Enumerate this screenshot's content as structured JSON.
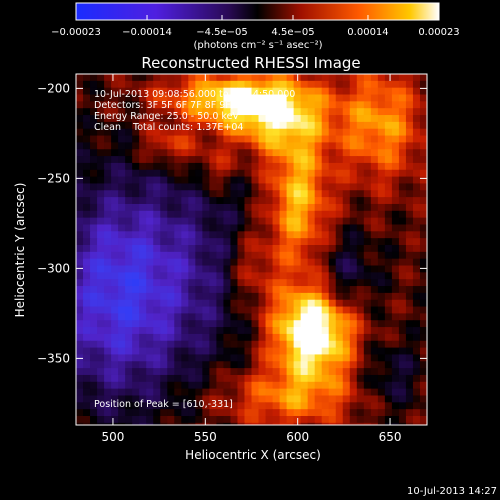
{
  "chart_data": {
    "type": "heatmap",
    "title": "Reconstructed RHESSI Image",
    "xlabel": "Heliocentric X (arcsec)",
    "ylabel": "Heliocentric Y (arcsec)",
    "xlim": [
      480,
      670
    ],
    "ylim": [
      -387,
      -192
    ],
    "xticks": [
      500,
      550,
      600,
      650
    ],
    "xtick_labels": [
      "500",
      "550",
      "600",
      "650"
    ],
    "yticks": [
      -200,
      -250,
      -300,
      -350
    ],
    "ytick_labels": [
      "−200",
      "−250",
      "−300",
      "−350"
    ],
    "colorbar": {
      "range": [
        -0.00023,
        0.00023
      ],
      "ticks": [
        -0.00023,
        -0.00014,
        -4.5e-05,
        4.5e-05,
        0.00014,
        0.00023
      ],
      "tick_labels": [
        "−0.00023",
        "−0.00014",
        "−4.5e−05",
        "4.5e−05",
        "0.00014",
        "0.00023"
      ],
      "unit_label": "(photons cm⁻² s⁻¹ asec⁻²)"
    },
    "annotations": [
      "10-Jul-2013 09:08:56.000 to 09:14:50.000",
      "Detectors: 3F 5F 6F 7F 8F 9F, Att 0",
      "Energy Range: 25.0 - 50.0 keV",
      "Clean    Total counts: 1.37E+04"
    ],
    "peak_label": "Position of Peak = [610,-331]",
    "peak": [
      610,
      -331
    ],
    "grid": false,
    "sources": [
      {
        "x": 608,
        "y": -335,
        "amp": 0.00026,
        "sx": 16,
        "sy": 18
      },
      {
        "x": 585,
        "y": -215,
        "amp": 0.00017,
        "sx": 22,
        "sy": 14
      },
      {
        "x": 560,
        "y": -205,
        "amp": 0.00014,
        "sx": 26,
        "sy": 9
      },
      {
        "x": 600,
        "y": -262,
        "amp": 0.00016,
        "sx": 12,
        "sy": 28
      },
      {
        "x": 645,
        "y": -220,
        "amp": 0.00013,
        "sx": 16,
        "sy": 22
      },
      {
        "x": 530,
        "y": -232,
        "amp": 9e-05,
        "sx": 11,
        "sy": 8
      },
      {
        "x": 595,
        "y": -372,
        "amp": 0.00011,
        "sx": 26,
        "sy": 12
      },
      {
        "x": 575,
        "y": -300,
        "amp": 8e-05,
        "sx": 10,
        "sy": 16
      },
      {
        "x": 555,
        "y": -245,
        "amp": 6e-05,
        "sx": 8,
        "sy": 8
      },
      {
        "x": 500,
        "y": -315,
        "amp": -0.00017,
        "sx": 26,
        "sy": 42
      },
      {
        "x": 545,
        "y": -300,
        "amp": -8e-05,
        "sx": 30,
        "sy": 40
      },
      {
        "x": 625,
        "y": -305,
        "amp": -8e-05,
        "sx": 12,
        "sy": 16
      },
      {
        "x": 650,
        "y": -360,
        "amp": -6e-05,
        "sx": 12,
        "sy": 14
      }
    ]
  },
  "footer": {
    "timestamp": "10-Jul-2013 14:27"
  }
}
